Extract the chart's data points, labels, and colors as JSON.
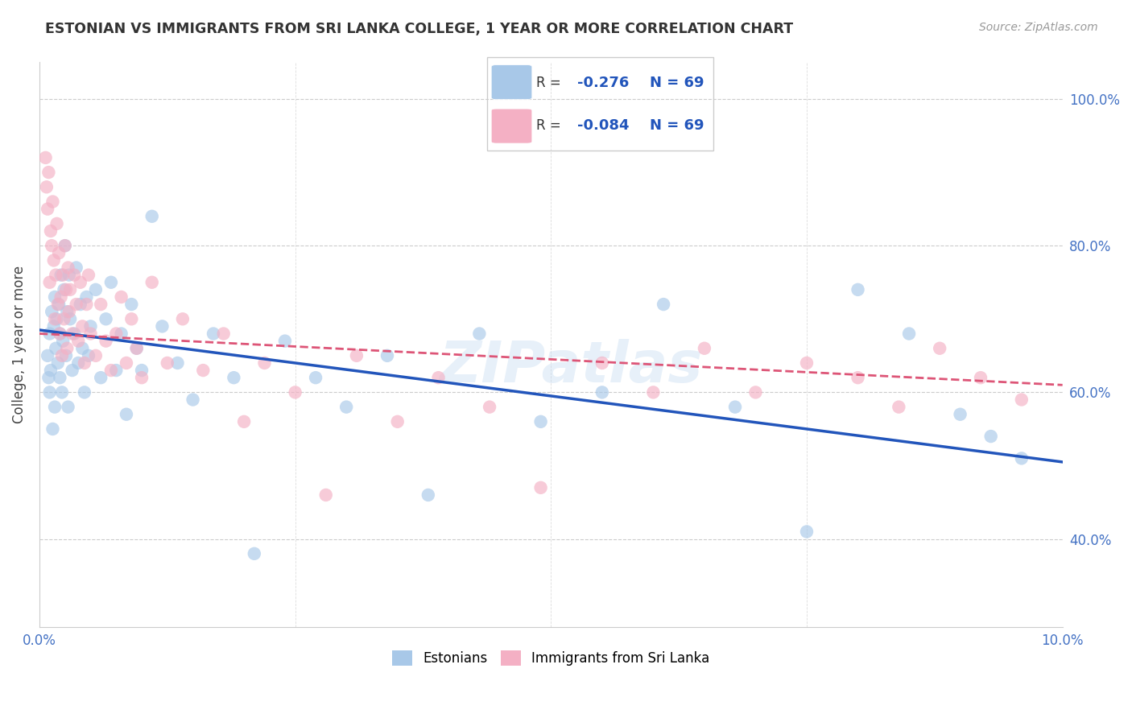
{
  "title": "ESTONIAN VS IMMIGRANTS FROM SRI LANKA COLLEGE, 1 YEAR OR MORE CORRELATION CHART",
  "source": "Source: ZipAtlas.com",
  "ylabel": "College, 1 year or more",
  "xlim": [
    0.0,
    10.0
  ],
  "ylim": [
    28.0,
    105.0
  ],
  "R_blue": -0.276,
  "N_blue": 69,
  "R_pink": -0.084,
  "N_pink": 69,
  "blue_color": "#a8c8e8",
  "pink_color": "#f4b0c4",
  "blue_line_color": "#2255bb",
  "pink_line_color": "#dd5577",
  "watermark": "ZIPatlas",
  "legend_label_blue": "Estonians",
  "legend_label_pink": "Immigrants from Sri Lanka",
  "blue_line_x0": 0.0,
  "blue_line_y0": 68.5,
  "blue_line_x1": 10.0,
  "blue_line_y1": 50.5,
  "pink_line_x0": 0.0,
  "pink_line_y0": 68.0,
  "pink_line_x1": 10.0,
  "pink_line_y1": 61.0,
  "blue_x": [
    0.08,
    0.09,
    0.1,
    0.1,
    0.11,
    0.12,
    0.13,
    0.14,
    0.15,
    0.15,
    0.16,
    0.17,
    0.18,
    0.19,
    0.2,
    0.2,
    0.21,
    0.22,
    0.23,
    0.24,
    0.25,
    0.26,
    0.27,
    0.28,
    0.29,
    0.3,
    0.32,
    0.34,
    0.36,
    0.38,
    0.4,
    0.42,
    0.44,
    0.46,
    0.48,
    0.5,
    0.55,
    0.6,
    0.65,
    0.7,
    0.75,
    0.8,
    0.85,
    0.9,
    0.95,
    1.0,
    1.1,
    1.2,
    1.35,
    1.5,
    1.7,
    1.9,
    2.1,
    2.4,
    2.7,
    3.0,
    3.4,
    3.8,
    4.3,
    4.9,
    5.5,
    6.1,
    6.8,
    7.5,
    8.0,
    8.5,
    9.0,
    9.3,
    9.6
  ],
  "blue_y": [
    65.0,
    62.0,
    60.0,
    68.0,
    63.0,
    71.0,
    55.0,
    69.0,
    58.0,
    73.0,
    66.0,
    70.0,
    64.0,
    72.0,
    62.0,
    68.0,
    76.0,
    60.0,
    67.0,
    74.0,
    80.0,
    65.0,
    71.0,
    58.0,
    76.0,
    70.0,
    63.0,
    68.0,
    77.0,
    64.0,
    72.0,
    66.0,
    60.0,
    73.0,
    65.0,
    69.0,
    74.0,
    62.0,
    70.0,
    75.0,
    63.0,
    68.0,
    57.0,
    72.0,
    66.0,
    63.0,
    84.0,
    69.0,
    64.0,
    59.0,
    68.0,
    62.0,
    38.0,
    67.0,
    62.0,
    58.0,
    65.0,
    46.0,
    68.0,
    56.0,
    60.0,
    72.0,
    58.0,
    41.0,
    74.0,
    68.0,
    57.0,
    54.0,
    51.0
  ],
  "pink_x": [
    0.06,
    0.07,
    0.08,
    0.09,
    0.1,
    0.11,
    0.12,
    0.13,
    0.14,
    0.15,
    0.16,
    0.17,
    0.18,
    0.19,
    0.2,
    0.21,
    0.22,
    0.23,
    0.24,
    0.25,
    0.26,
    0.27,
    0.28,
    0.29,
    0.3,
    0.32,
    0.34,
    0.36,
    0.38,
    0.4,
    0.42,
    0.44,
    0.46,
    0.48,
    0.5,
    0.55,
    0.6,
    0.65,
    0.7,
    0.75,
    0.8,
    0.85,
    0.9,
    0.95,
    1.0,
    1.1,
    1.25,
    1.4,
    1.6,
    1.8,
    2.0,
    2.2,
    2.5,
    2.8,
    3.1,
    3.5,
    3.9,
    4.4,
    4.9,
    5.5,
    6.0,
    6.5,
    7.0,
    7.5,
    8.0,
    8.4,
    8.8,
    9.2,
    9.6
  ],
  "pink_y": [
    92.0,
    88.0,
    85.0,
    90.0,
    75.0,
    82.0,
    80.0,
    86.0,
    78.0,
    70.0,
    76.0,
    83.0,
    72.0,
    79.0,
    68.0,
    73.0,
    65.0,
    76.0,
    70.0,
    80.0,
    74.0,
    66.0,
    77.0,
    71.0,
    74.0,
    68.0,
    76.0,
    72.0,
    67.0,
    75.0,
    69.0,
    64.0,
    72.0,
    76.0,
    68.0,
    65.0,
    72.0,
    67.0,
    63.0,
    68.0,
    73.0,
    64.0,
    70.0,
    66.0,
    62.0,
    75.0,
    64.0,
    70.0,
    63.0,
    68.0,
    56.0,
    64.0,
    60.0,
    46.0,
    65.0,
    56.0,
    62.0,
    58.0,
    47.0,
    64.0,
    60.0,
    66.0,
    60.0,
    64.0,
    62.0,
    58.0,
    66.0,
    62.0,
    59.0
  ]
}
